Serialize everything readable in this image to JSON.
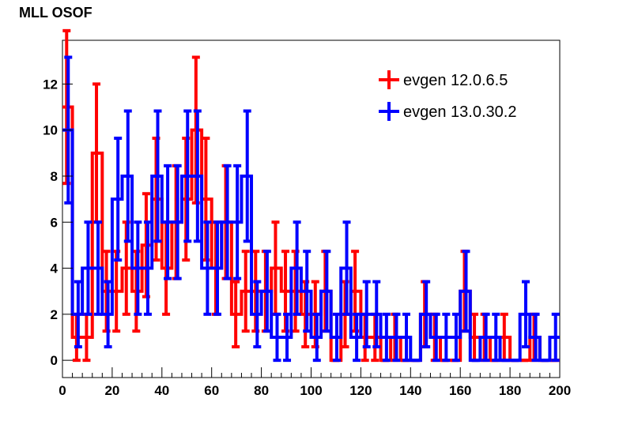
{
  "chart_data": {
    "type": "histogram",
    "title": "MLL OSOF",
    "xlabel": "",
    "ylabel": "",
    "xlim": [
      0,
      200
    ],
    "ylim": [
      -0.75,
      13.9
    ],
    "bin_width": 4,
    "x_ticks": [
      0,
      20,
      40,
      60,
      80,
      100,
      120,
      140,
      160,
      180,
      200
    ],
    "y_ticks": [
      0,
      2,
      4,
      6,
      8,
      10,
      12
    ],
    "legend_position": "top-right",
    "series": [
      {
        "name": "evgen 12.0.6.5",
        "color": "#ff0000",
        "bins": [
          0,
          4,
          8,
          12,
          16,
          20,
          24,
          28,
          32,
          36,
          40,
          44,
          48,
          52,
          56,
          60,
          64,
          68,
          72,
          76,
          80,
          84,
          88,
          92,
          96,
          100,
          104,
          108,
          112,
          116,
          120,
          124,
          128,
          132,
          136,
          140,
          144,
          148,
          152,
          156,
          160,
          164,
          168,
          172,
          176,
          180,
          184,
          188,
          192,
          196
        ],
        "values": [
          11,
          1,
          1,
          9,
          3,
          3,
          4,
          3,
          5,
          7,
          4,
          6,
          7,
          10,
          7,
          4,
          6,
          2,
          3,
          3,
          3,
          4,
          3,
          3,
          2,
          2,
          3,
          0,
          2,
          3,
          1,
          1,
          0,
          1,
          0,
          0,
          2,
          1,
          0,
          0,
          3,
          1,
          1,
          0,
          1,
          0,
          0,
          1,
          0,
          0
        ]
      },
      {
        "name": "evgen 13.0.30.2",
        "color": "#0000ff",
        "bins": [
          0,
          4,
          8,
          12,
          16,
          20,
          24,
          28,
          32,
          36,
          40,
          44,
          48,
          52,
          56,
          60,
          64,
          68,
          72,
          76,
          80,
          84,
          88,
          92,
          96,
          100,
          104,
          108,
          112,
          116,
          120,
          124,
          128,
          132,
          136,
          140,
          144,
          148,
          152,
          156,
          160,
          164,
          168,
          172,
          176,
          180,
          184,
          188,
          192,
          196
        ],
        "values": [
          10,
          2,
          4,
          4,
          2,
          7,
          8,
          4,
          4,
          8,
          6,
          6,
          8,
          8,
          4,
          4,
          6,
          6,
          8,
          2,
          3,
          1,
          1,
          4,
          3,
          1,
          3,
          1,
          4,
          1,
          2,
          2,
          1,
          1,
          1,
          0,
          2,
          1,
          1,
          1,
          3,
          0,
          1,
          1,
          0,
          0,
          2,
          1,
          0,
          1
        ]
      }
    ]
  }
}
